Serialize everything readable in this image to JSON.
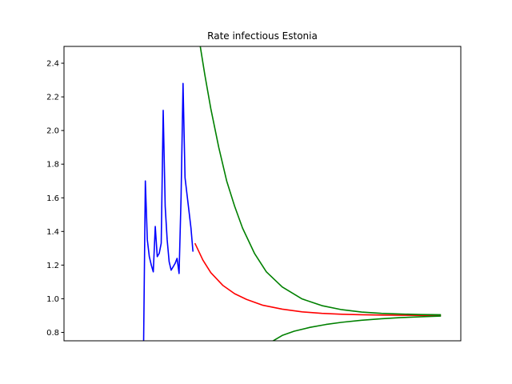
{
  "chart_data": {
    "type": "line",
    "title": "Rate infectious Estonia",
    "xlabel": "",
    "ylabel": "",
    "ylim": [
      0.75,
      2.5
    ],
    "xlim": [
      0,
      100
    ],
    "x_tick_labels_shown": false,
    "y_ticks": [
      "0.8",
      "1.0",
      "1.2",
      "1.4",
      "1.6",
      "1.8",
      "2.0",
      "2.2",
      "2.4"
    ],
    "y_tick_values": [
      0.8,
      1.0,
      1.2,
      1.4,
      1.6,
      1.8,
      2.0,
      2.2,
      2.4
    ],
    "grid": false,
    "series": [
      {
        "color": "#0000ff",
        "points": [
          [
            20.0,
            0.6
          ],
          [
            20.5,
            1.7
          ],
          [
            21.0,
            1.35
          ],
          [
            21.5,
            1.25
          ],
          [
            22.0,
            1.2
          ],
          [
            22.5,
            1.16
          ],
          [
            23.0,
            1.43
          ],
          [
            23.5,
            1.25
          ],
          [
            24.0,
            1.27
          ],
          [
            24.5,
            1.33
          ],
          [
            25.0,
            2.12
          ],
          [
            25.5,
            1.55
          ],
          [
            26.0,
            1.35
          ],
          [
            26.5,
            1.22
          ],
          [
            27.0,
            1.17
          ],
          [
            27.5,
            1.19
          ],
          [
            28.0,
            1.21
          ],
          [
            28.5,
            1.24
          ],
          [
            29.0,
            1.15
          ],
          [
            29.5,
            1.6
          ],
          [
            30.0,
            2.28
          ],
          [
            30.5,
            1.72
          ],
          [
            31.0,
            1.62
          ],
          [
            31.5,
            1.52
          ],
          [
            32.0,
            1.42
          ],
          [
            32.5,
            1.28
          ]
        ]
      },
      {
        "color": "#ff0000",
        "points": [
          [
            33,
            1.33
          ],
          [
            35,
            1.23
          ],
          [
            37,
            1.155
          ],
          [
            40,
            1.08
          ],
          [
            43,
            1.03
          ],
          [
            46,
            0.996
          ],
          [
            50,
            0.962
          ],
          [
            55,
            0.938
          ],
          [
            60,
            0.922
          ],
          [
            65,
            0.913
          ],
          [
            70,
            0.908
          ],
          [
            75,
            0.905
          ],
          [
            80,
            0.903
          ],
          [
            85,
            0.902
          ],
          [
            90,
            0.901
          ],
          [
            95,
            0.9
          ]
        ]
      },
      {
        "color": "#008000",
        "points": [
          [
            34,
            2.55
          ],
          [
            35.5,
            2.33
          ],
          [
            37,
            2.13
          ],
          [
            39,
            1.9
          ],
          [
            41,
            1.7
          ],
          [
            43,
            1.55
          ],
          [
            45,
            1.42
          ],
          [
            48,
            1.27
          ],
          [
            51,
            1.16
          ],
          [
            55,
            1.07
          ],
          [
            60,
            0.999
          ],
          [
            65,
            0.959
          ],
          [
            70,
            0.935
          ],
          [
            75,
            0.921
          ],
          [
            80,
            0.913
          ],
          [
            85,
            0.909
          ],
          [
            90,
            0.906
          ],
          [
            95,
            0.905
          ]
        ]
      },
      {
        "color": "#008000",
        "points": [
          [
            52,
            0.74
          ],
          [
            55,
            0.782
          ],
          [
            58,
            0.807
          ],
          [
            62,
            0.83
          ],
          [
            66,
            0.847
          ],
          [
            70,
            0.86
          ],
          [
            75,
            0.872
          ],
          [
            80,
            0.881
          ],
          [
            85,
            0.888
          ],
          [
            90,
            0.893
          ],
          [
            95,
            0.897
          ]
        ]
      }
    ]
  }
}
